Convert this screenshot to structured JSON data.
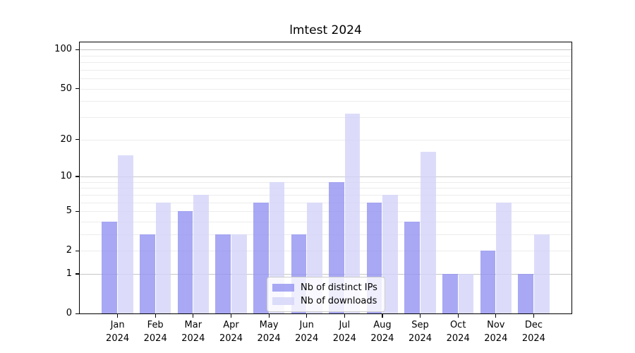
{
  "chart_data": {
    "type": "bar",
    "title": "lmtest 2024",
    "x_year": "2024",
    "categories": [
      "Jan",
      "Feb",
      "Mar",
      "Apr",
      "May",
      "Jun",
      "Jul",
      "Aug",
      "Sep",
      "Oct",
      "Nov",
      "Dec"
    ],
    "series": [
      {
        "name": "Nb of distinct IPs",
        "color": "rgba(146,146,241,0.8)",
        "values": [
          4,
          3,
          5,
          3,
          6,
          3,
          9,
          6,
          4,
          1,
          2,
          1
        ]
      },
      {
        "name": "Nb of downloads",
        "color": "rgba(211,211,249,0.8)",
        "values": [
          15,
          6,
          7,
          3,
          9,
          6,
          32,
          7,
          16,
          1,
          6,
          3
        ]
      }
    ],
    "y_axis": {
      "scale": "log(v+1)",
      "tick_labels": [
        "0",
        "1",
        "2",
        "5",
        "10",
        "20",
        "50",
        "100"
      ],
      "tick_values": [
        0,
        1,
        2,
        5,
        10,
        20,
        50,
        100
      ],
      "major_gridlines": [
        1,
        10,
        100
      ],
      "minor_gridlines": [
        2,
        3,
        4,
        5,
        6,
        7,
        8,
        9,
        20,
        30,
        40,
        50,
        60,
        70,
        80,
        90
      ],
      "ylim": [
        0,
        110
      ]
    },
    "legend_position": "lower center",
    "grid": true,
    "colors": {
      "bar_ips": "rgba(146,146,241,0.8)",
      "bar_downloads": "rgba(211,211,249,0.8)",
      "grid_major": "#c6c6c6",
      "grid_minor": "#ececec",
      "spine": "#000000",
      "background": "#ffffff"
    }
  }
}
